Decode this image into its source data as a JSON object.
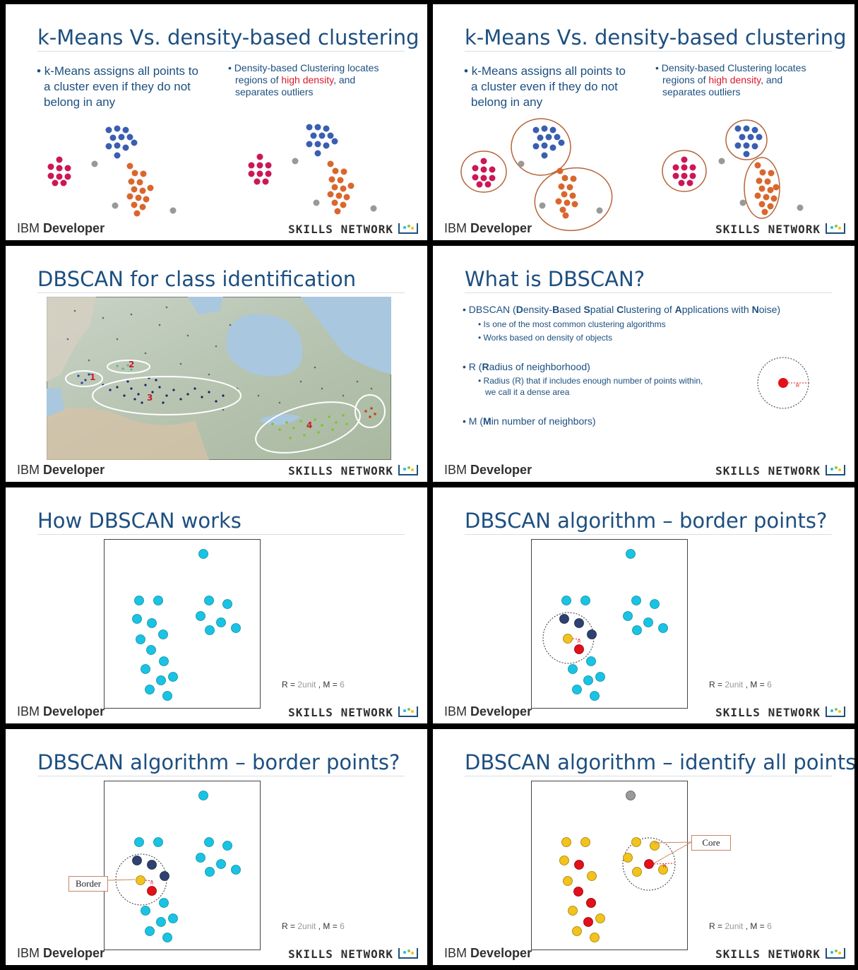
{
  "footer": {
    "ibm": "IBM",
    "developer": "Developer",
    "skills": "SKILLS NETWORK"
  },
  "colors": {
    "title": "#1d4f80",
    "accent_red": "#d81b2b",
    "cyan": "#19c3e3",
    "navy": "#2f4170",
    "yellow": "#f2c21e",
    "magenta": "#cc1756",
    "blue": "#3a5eb0",
    "orange": "#d9672d",
    "gray": "#999999"
  },
  "slides": [
    {
      "title": "k-Means Vs. density-based clustering",
      "left_bullet": [
        "k-Means assigns all points to",
        "a cluster even if they do not",
        "belong in any"
      ],
      "right_bullet_a": "Density-based Clustering locates",
      "right_bullet_b": "regions of ",
      "right_bullet_red": "high density",
      "right_bullet_c": ", and",
      "right_bullet_d": "separates outliers"
    },
    {
      "title": "k-Means Vs. density-based clustering",
      "left_bullet": [
        "k-Means assigns all points to",
        "a cluster even if they do not",
        "belong in any"
      ],
      "right_bullet_a": "Density-based Clustering locates",
      "right_bullet_b": "regions of ",
      "right_bullet_red": "high density",
      "right_bullet_c": ", and",
      "right_bullet_d": "separates outliers"
    },
    {
      "title": "DBSCAN for class identification",
      "map_labels": [
        "1",
        "2",
        "3",
        "4"
      ]
    },
    {
      "title": "What is DBSCAN?",
      "b1_prefix": "DBSCAN (",
      "b1_D": "D",
      "b1_ensity": "ensity-",
      "b1_B": "B",
      "b1_ased": "ased ",
      "b1_S": "S",
      "b1_patial": "patial ",
      "b1_C": "C",
      "b1_lustering": "lustering of ",
      "b1_A": "A",
      "b1_pplications": "pplications with ",
      "b1_N": "N",
      "b1_oise": "oise)",
      "b1_sub1": "Is one of the most common clustering algorithms",
      "b1_sub2": "Works based on density of objects",
      "b2_prefix": "R (",
      "b2_R": "R",
      "b2_rest": "adius of neighborhood)",
      "b2_sub1": "Radius (R) that if includes enough number of points within,",
      "b2_sub2": "we call it a dense area",
      "b3_prefix": "M (",
      "b3_M": "M",
      "b3_rest": "in number of neighbors)",
      "diagram_r": "R"
    },
    {
      "title": "How DBSCAN works",
      "param_r": "R = ",
      "param_r_val": "2unit",
      "param_sep": " , M = ",
      "param_m_val": "6"
    },
    {
      "title": "DBSCAN algorithm – border points?",
      "param_r": "R = ",
      "param_r_val": "2unit",
      "param_sep": " , M = ",
      "param_m_val": "6",
      "diagram_r": "R"
    },
    {
      "title": "DBSCAN algorithm – border points?",
      "param_r": "R = ",
      "param_r_val": "2unit",
      "param_sep": " , M = ",
      "param_m_val": "6",
      "callout": "Border",
      "diagram_r": "R"
    },
    {
      "title": "DBSCAN algorithm – identify all points",
      "param_r": "R = ",
      "param_r_val": "2unit",
      "param_sep": " , M = ",
      "param_m_val": "6",
      "callout": "Core",
      "diagram_r": "R"
    }
  ]
}
